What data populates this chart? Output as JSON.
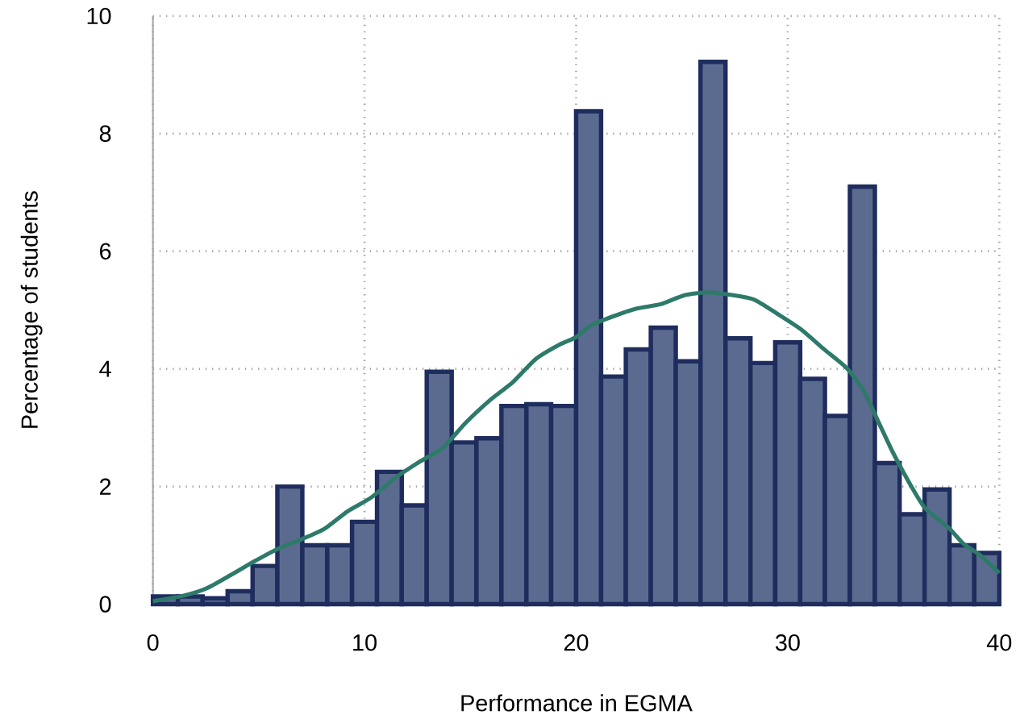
{
  "chart_data": {
    "type": "histogram",
    "xlabel": "Performance in EGMA",
    "ylabel": "Percentage of students",
    "bins": [
      0,
      1.18,
      2.35,
      3.53,
      4.71,
      5.88,
      7.06,
      8.24,
      9.41,
      10.59,
      11.76,
      12.94,
      14.12,
      15.29,
      16.47,
      17.65,
      18.82,
      20,
      21.18,
      22.35,
      23.53,
      24.71,
      25.88,
      27.06,
      28.24,
      29.41,
      30.59,
      31.76,
      32.94,
      34.12,
      35.29,
      36.47,
      37.65,
      38.82,
      40
    ],
    "values": [
      0.13,
      0.13,
      0.1,
      0.22,
      0.65,
      2.0,
      1.0,
      1.0,
      1.4,
      2.25,
      1.68,
      3.95,
      2.75,
      2.82,
      3.37,
      3.4,
      3.37,
      8.38,
      3.87,
      4.33,
      4.7,
      4.13,
      9.22,
      4.52,
      4.1,
      4.45,
      3.83,
      3.2,
      7.1,
      2.4,
      1.53,
      1.95,
      1.0,
      0.87
    ],
    "color": "#5b6a8f",
    "series": [
      {
        "type": "line",
        "color": "#2e7a6a",
        "x": [
          0,
          1.5,
          2.6,
          3.7,
          4.8,
          5.9,
          7.0,
          8.1,
          9.2,
          10.3,
          11.5,
          12.6,
          13.7,
          14.8,
          15.9,
          17.0,
          18.1,
          19.2,
          20.0,
          20.7,
          21.8,
          22.9,
          24.0,
          25.1,
          26.2,
          27.3,
          28.4,
          29.5,
          30.6,
          31.7,
          32.8,
          33.6,
          34.3,
          35.0,
          35.8,
          36.5,
          37.6,
          38.3,
          39.1,
          40
        ],
        "values": [
          0.05,
          0.15,
          0.28,
          0.5,
          0.73,
          0.94,
          1.1,
          1.28,
          1.58,
          1.81,
          2.16,
          2.42,
          2.66,
          3.09,
          3.46,
          3.77,
          4.17,
          4.41,
          4.54,
          4.74,
          4.9,
          5.03,
          5.1,
          5.25,
          5.3,
          5.26,
          5.18,
          4.94,
          4.68,
          4.34,
          4.01,
          3.62,
          3.09,
          2.56,
          2.03,
          1.63,
          1.3,
          1.03,
          0.83,
          0.53
        ]
      }
    ],
    "xlim": [
      0,
      40
    ],
    "ylim": [
      0,
      10
    ],
    "xticks": [
      0,
      10,
      20,
      30,
      40
    ],
    "yticks": [
      0,
      2,
      4,
      6,
      8,
      10
    ],
    "grid": true,
    "line_style": "solid",
    "marker": "none"
  }
}
